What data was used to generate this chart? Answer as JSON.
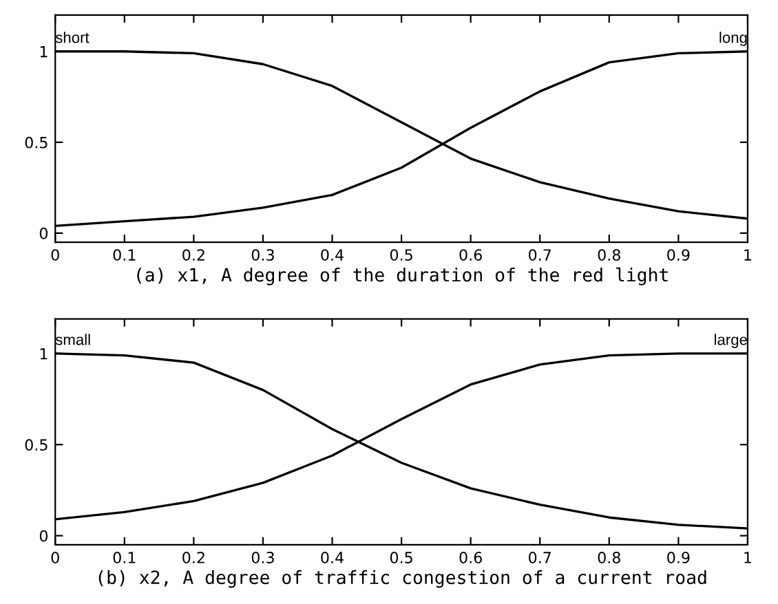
{
  "chart_data": [
    {
      "type": "line",
      "xlabel": "(a) x1, A degree of the duration of the red light",
      "x": [
        0,
        0.1,
        0.2,
        0.3,
        0.4,
        0.5,
        0.6,
        0.7,
        0.8,
        0.9,
        1
      ],
      "series": [
        {
          "name": "short",
          "color": "#000000",
          "values": [
            1,
            1,
            0.99,
            0.93,
            0.81,
            0.61,
            0.41,
            0.28,
            0.19,
            0.12,
            0.08
          ]
        },
        {
          "name": "long",
          "color": "#000000",
          "values": [
            0.04,
            0.065,
            0.09,
            0.14,
            0.21,
            0.36,
            0.58,
            0.78,
            0.94,
            0.99,
            1
          ]
        }
      ],
      "xlim": [
        0,
        1
      ],
      "ylim": [
        -0.05,
        1.2
      ],
      "xticks": [
        0,
        0.1,
        0.2,
        0.3,
        0.4,
        0.5,
        0.6,
        0.7,
        0.8,
        0.9,
        1
      ],
      "yticks": [
        0,
        0.5,
        1
      ],
      "grid": false,
      "legend": "top",
      "marker": "none",
      "line_style": "solid"
    },
    {
      "type": "line",
      "xlabel": "(b) x2, A degree of traffic congestion of a current road",
      "x": [
        0,
        0.1,
        0.2,
        0.3,
        0.4,
        0.5,
        0.6,
        0.7,
        0.8,
        0.9,
        1
      ],
      "series": [
        {
          "name": "small",
          "color": "#000000",
          "values": [
            1,
            0.99,
            0.95,
            0.8,
            0.585,
            0.4,
            0.26,
            0.17,
            0.1,
            0.06,
            0.04
          ]
        },
        {
          "name": "large",
          "color": "#000000",
          "values": [
            0.09,
            0.13,
            0.19,
            0.29,
            0.44,
            0.64,
            0.83,
            0.94,
            0.99,
            1,
            1
          ]
        }
      ],
      "xlim": [
        0,
        1
      ],
      "ylim": [
        -0.05,
        1.19
      ],
      "xticks": [
        0,
        0.1,
        0.2,
        0.3,
        0.4,
        0.5,
        0.6,
        0.7,
        0.8,
        0.9,
        1
      ],
      "yticks": [
        0,
        0.5,
        1
      ],
      "grid": false,
      "legend": "top",
      "marker": "none",
      "line_style": "solid"
    }
  ]
}
